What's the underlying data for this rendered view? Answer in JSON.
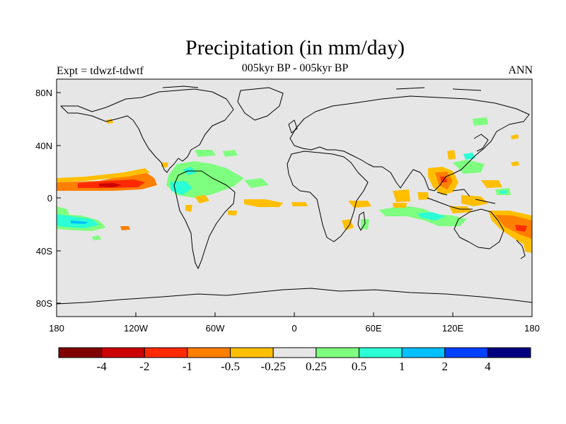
{
  "title": "Precipitation (in mm/day)",
  "subtitle": "005kyr BP - 005kyr BP",
  "left_label": "Expt = tdwzf-tdwtf",
  "right_label": "ANN",
  "lat_ticks": [
    "80N",
    "40N",
    "0",
    "40S",
    "80S"
  ],
  "lon_ticks": [
    "180",
    "120W",
    "60W",
    "0",
    "60E",
    "120E",
    "180"
  ],
  "colorbar": {
    "colors": [
      "#800000",
      "#cc0000",
      "#ff2a00",
      "#ff7f00",
      "#ffbf00",
      "#e6e6e6",
      "#7fff7f",
      "#2affd5",
      "#00c0ff",
      "#0040ff",
      "#000080"
    ],
    "labels": [
      "-4",
      "-2",
      "-1",
      "-0.5",
      "-0.25",
      "0.25",
      "0.5",
      "1",
      "2",
      "4"
    ]
  },
  "colors": {
    "ocean": "#e6e6e6",
    "coast": "#000000"
  }
}
